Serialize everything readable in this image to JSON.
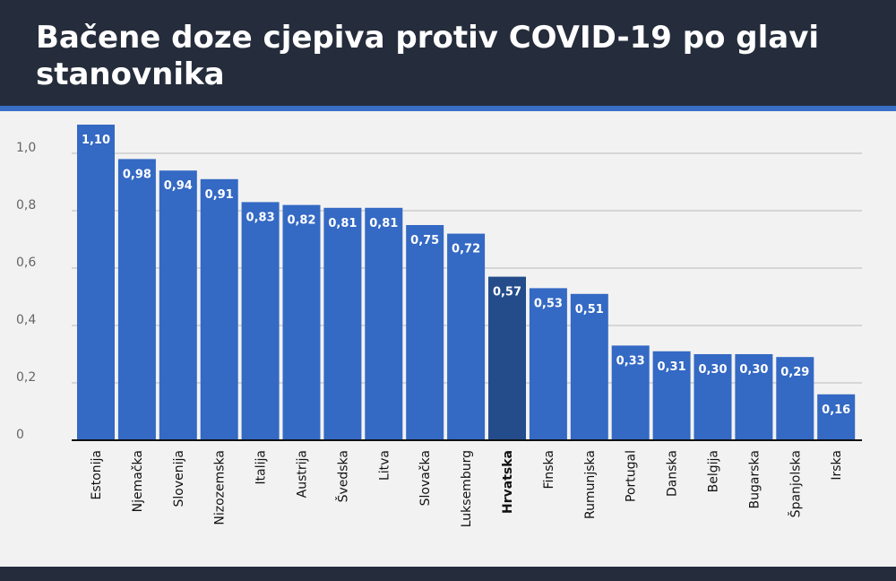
{
  "header": {
    "title": "Bačene doze cjepiva protiv COVID-19 po glavi stanovnika"
  },
  "colors": {
    "header_bg": "#252c3b",
    "accent": "#3a6fc7",
    "bar": "#3469c4",
    "bar_highlight": "#244c8a",
    "background": "#f2f2f2"
  },
  "chart_data": {
    "type": "bar",
    "title": "Bačene doze cjepiva protiv COVID-19 po glavi stanovnika",
    "xlabel": "",
    "ylabel": "",
    "ylim": [
      0,
      1.0
    ],
    "y_ticks": [
      "0",
      "0,2",
      "0,4",
      "0,6",
      "0,8",
      "1,0"
    ],
    "y_tick_values": [
      0,
      0.2,
      0.4,
      0.6,
      0.8,
      1.0
    ],
    "grid": true,
    "highlight_category": "Hrvatska",
    "categories": [
      "Estonija",
      "Njemačka",
      "Slovenija",
      "Nizozemska",
      "Italija",
      "Austrija",
      "Švedska",
      "Litva",
      "Slovačka",
      "Luksemburg",
      "Hrvatska",
      "Finska",
      "Rumunjska",
      "Portugal",
      "Danska",
      "Belgija",
      "Bugarska",
      "Španjolska",
      "Irska"
    ],
    "values": [
      1.1,
      0.98,
      0.94,
      0.91,
      0.83,
      0.82,
      0.81,
      0.81,
      0.75,
      0.72,
      0.57,
      0.53,
      0.51,
      0.33,
      0.31,
      0.3,
      0.3,
      0.29,
      0.16
    ],
    "value_labels": [
      "1,10",
      "0,98",
      "0,94",
      "0,91",
      "0,83",
      "0,82",
      "0,81",
      "0,81",
      "0,75",
      "0,72",
      "0,57",
      "0,53",
      "0,51",
      "0,33",
      "0,31",
      "0,30",
      "0,30",
      "0,29",
      "0,16"
    ]
  }
}
